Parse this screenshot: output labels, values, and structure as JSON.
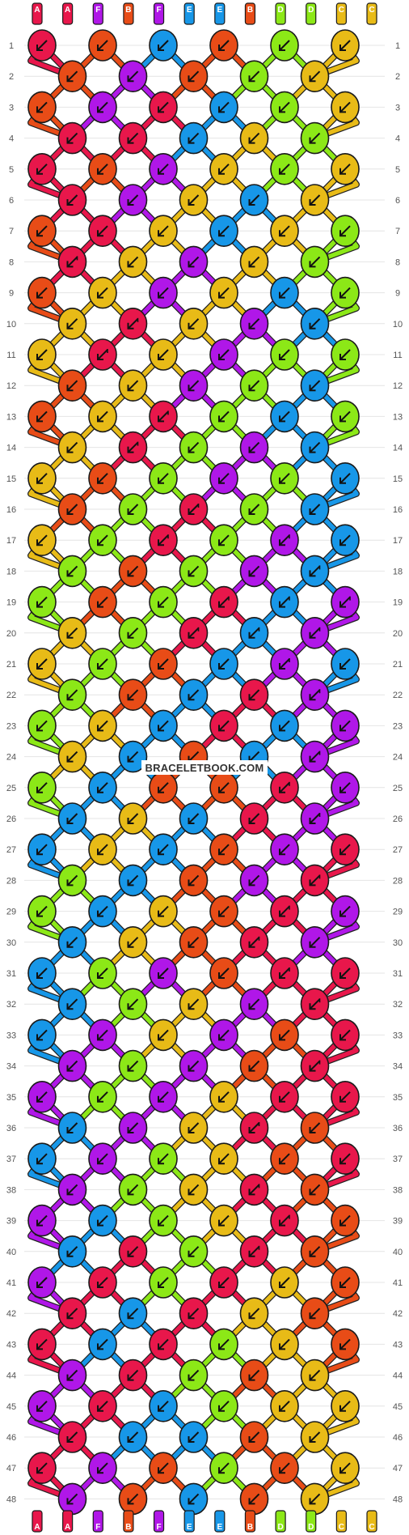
{
  "pattern": {
    "watermark": "BRACELETBOOK.COM",
    "top_labels": [
      "A",
      "A",
      "F",
      "B",
      "F",
      "E",
      "E",
      "B",
      "D",
      "D",
      "C",
      "C"
    ],
    "bottom_labels": [
      "A",
      "A",
      "F",
      "B",
      "F",
      "E",
      "E",
      "B",
      "D",
      "D",
      "C",
      "C"
    ],
    "row_numbers": [
      1,
      2,
      3,
      4,
      5,
      6,
      7,
      8,
      9,
      10,
      11,
      12,
      13,
      14,
      15,
      16,
      17,
      18,
      19,
      20,
      21,
      22,
      23,
      24,
      25,
      26,
      27,
      28,
      29,
      30,
      31,
      32,
      33,
      34,
      35,
      36,
      37,
      38,
      39,
      40,
      41,
      42,
      43,
      44,
      45,
      46,
      47,
      48
    ],
    "colors": {
      "A": "#e8174b",
      "B": "#e84c17",
      "C": "#e8bb17",
      "D": "#8ce817",
      "E": "#1797e8",
      "F": "#b017e8"
    },
    "knot_type_icons": {
      "b": "backward-knot-icon",
      "s": "backward-forward-knot-icon"
    },
    "rows": [
      [
        "Ab",
        "Bb",
        "Eb",
        "Bb",
        "Db",
        "Cb"
      ],
      [
        "Bb",
        "Fb",
        "Bb",
        "Db",
        "Cb"
      ],
      [
        "Bb",
        "Fb",
        "Ab",
        "Eb",
        "Db",
        "Cb"
      ],
      [
        "Ab",
        "Ab",
        "Eb",
        "Cb",
        "Db"
      ],
      [
        "Ab",
        "Bb",
        "Fb",
        "Cb",
        "Db",
        "Cb"
      ],
      [
        "Ab",
        "Fb",
        "Cb",
        "Eb",
        "Cb"
      ],
      [
        "Bb",
        "Ab",
        "Cb",
        "Eb",
        "Cb",
        "Db"
      ],
      [
        "As",
        "Cb",
        "Fb",
        "Cb",
        "Db"
      ],
      [
        "Bb",
        "Cb",
        "Fb",
        "Cb",
        "Eb",
        "Db"
      ],
      [
        "Cb",
        "As",
        "Cb",
        "Fb",
        "Eb"
      ],
      [
        "Cb",
        "As",
        "Cb",
        "Fb",
        "Db",
        "Db"
      ],
      [
        "Bb",
        "Cb",
        "Fb",
        "Db",
        "Eb"
      ],
      [
        "Bb",
        "Cb",
        "As",
        "Db",
        "Eb",
        "Db"
      ],
      [
        "Cb",
        "As",
        "Db",
        "Fb",
        "Eb"
      ],
      [
        "Cb",
        "Bb",
        "Db",
        "Fb",
        "Db",
        "Eb"
      ],
      [
        "Bb",
        "Db",
        "As",
        "Db",
        "Eb"
      ],
      [
        "Cb",
        "Db",
        "As",
        "Db",
        "Fs",
        "Eb"
      ],
      [
        "Db",
        "Bb",
        "Db",
        "Fb",
        "Es"
      ],
      [
        "Db",
        "Bb",
        "Db",
        "As",
        "Es",
        "Fs"
      ],
      [
        "Cb",
        "Db",
        "As",
        "Es",
        "Fs"
      ],
      [
        "Cb",
        "Db",
        "Bb",
        "Eb",
        "Fs",
        "Eb"
      ],
      [
        "Db",
        "Bb",
        "Eb",
        "Ab",
        "Fs"
      ],
      [
        "Db",
        "Cb",
        "Eb",
        "Ab",
        "Eb",
        "Fb"
      ],
      [
        "Cb",
        "Eb",
        "Bb",
        "Eb",
        "Fs"
      ],
      [
        "Db",
        "Eb",
        "Bb",
        "Bb",
        "As",
        "Fb"
      ],
      [
        "Eb",
        "Cb",
        "Eb",
        "Ab",
        "Fs"
      ],
      [
        "Eb",
        "Cb",
        "Eb",
        "Bb",
        "Fb",
        "Ab"
      ],
      [
        "Db",
        "Eb",
        "Bb",
        "Fb",
        "As"
      ],
      [
        "Db",
        "Eb",
        "Cb",
        "Bb",
        "As",
        "Fb"
      ],
      [
        "Eb",
        "Cb",
        "Bb",
        "As",
        "Fb"
      ],
      [
        "Eb",
        "Db",
        "Fb",
        "Bb",
        "As",
        "Ab"
      ],
      [
        "Eb",
        "Db",
        "Cb",
        "Fb",
        "As"
      ],
      [
        "Eb",
        "Fb",
        "Cb",
        "Fb",
        "Bb",
        "Ab"
      ],
      [
        "Fb",
        "Db",
        "Fb",
        "Bb",
        "As"
      ],
      [
        "Fb",
        "Db",
        "Fb",
        "Cb",
        "Ab",
        "Ab"
      ],
      [
        "Eb",
        "Fb",
        "Cb",
        "As",
        "Bb"
      ],
      [
        "Eb",
        "Fb",
        "Db",
        "Cb",
        "Bb",
        "Ab"
      ],
      [
        "Fb",
        "Db",
        "Cb",
        "As",
        "Bb"
      ],
      [
        "Fb",
        "Eb",
        "Db",
        "Cb",
        "As",
        "Bb"
      ],
      [
        "Eb",
        "Ab",
        "Db",
        "As",
        "Bb"
      ],
      [
        "Fb",
        "Ab",
        "Db",
        "Ab",
        "Cb",
        "Bb"
      ],
      [
        "Ab",
        "Eb",
        "Ab",
        "Cb",
        "Bb"
      ],
      [
        "Ab",
        "Eb",
        "Ab",
        "Db",
        "Cb",
        "Bb"
      ],
      [
        "Fb",
        "Ab",
        "Db",
        "Bb",
        "Cb"
      ],
      [
        "Fb",
        "Ab",
        "Eb",
        "Db",
        "Cb",
        "Cb"
      ],
      [
        "Ab",
        "Eb",
        "Eb",
        "Bb",
        "Cb"
      ],
      [
        "Ab",
        "Fb",
        "Bb",
        "Db",
        "Bb",
        "Cb"
      ],
      [
        "Fb",
        "Bb",
        "Eb",
        "Bb",
        "Cb"
      ]
    ]
  }
}
